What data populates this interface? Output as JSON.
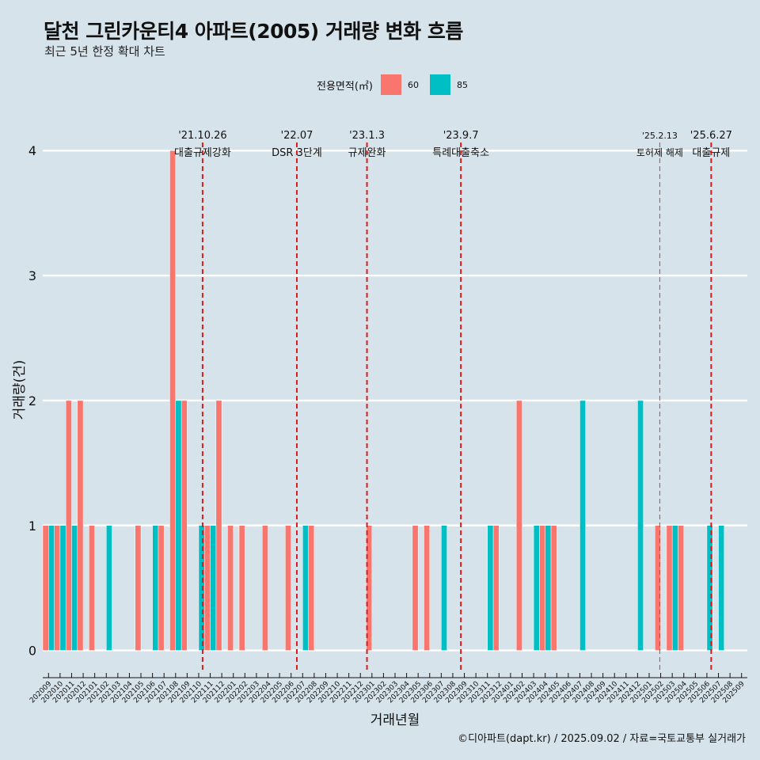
{
  "title": "달천 그린카운티4 아파트(2005) 거래량 변화 흐름",
  "subtitle": "최근 5년 한정 확대 차트",
  "legend": {
    "title": "전용면적(㎡)",
    "items": [
      {
        "label": "60",
        "color": "#f8766d"
      },
      {
        "label": "85",
        "color": "#00bfc4"
      }
    ]
  },
  "caption": "©디아파트(dapt.kr) / 2025.09.02 / 자료=국토교통부 실거래가",
  "chart_data": {
    "type": "bar",
    "xlabel": "거래년월",
    "ylabel": "거래량(건)",
    "ylim": [
      -0.18,
      4.35
    ],
    "yticks": [
      0,
      1,
      2,
      3,
      4
    ],
    "grid": true,
    "legend_position": "top",
    "categories": [
      "202009",
      "202010",
      "202011",
      "202012",
      "202101",
      "202102",
      "202103",
      "202104",
      "202105",
      "202106",
      "202107",
      "202108",
      "202109",
      "202110",
      "202111",
      "202112",
      "202201",
      "202202",
      "202203",
      "202204",
      "202205",
      "202206",
      "202207",
      "202208",
      "202209",
      "202210",
      "202211",
      "202212",
      "202301",
      "202302",
      "202303",
      "202304",
      "202305",
      "202306",
      "202307",
      "202308",
      "202309",
      "202310",
      "202311",
      "202312",
      "202401",
      "202402",
      "202403",
      "202404",
      "202405",
      "202406",
      "202407",
      "202408",
      "202409",
      "202410",
      "202411",
      "202412",
      "202501",
      "202502",
      "202503",
      "202504",
      "202505",
      "202506",
      "202507",
      "202508",
      "202509"
    ],
    "series": [
      {
        "name": "60",
        "color": "#f8766d",
        "values": [
          1,
          1,
          2,
          2,
          1,
          0,
          0,
          0,
          1,
          0,
          1,
          4,
          2,
          0,
          1,
          2,
          1,
          1,
          0,
          1,
          0,
          1,
          0,
          1,
          0,
          0,
          0,
          0,
          1,
          0,
          0,
          0,
          1,
          1,
          0,
          0,
          0,
          0,
          0,
          1,
          0,
          2,
          0,
          1,
          1,
          0,
          0,
          0,
          0,
          0,
          0,
          0,
          0,
          1,
          1,
          1,
          0,
          0,
          0,
          0,
          0
        ]
      },
      {
        "name": "85",
        "color": "#00bfc4",
        "values": [
          1,
          1,
          1,
          0,
          0,
          1,
          0,
          0,
          0,
          1,
          0,
          2,
          0,
          1,
          1,
          0,
          0,
          0,
          0,
          0,
          0,
          0,
          1,
          0,
          0,
          0,
          0,
          0,
          0,
          0,
          0,
          0,
          0,
          0,
          1,
          0,
          0,
          0,
          1,
          0,
          0,
          0,
          1,
          1,
          0,
          0,
          2,
          0,
          0,
          0,
          0,
          2,
          0,
          0,
          1,
          0,
          0,
          1,
          1,
          0,
          0
        ]
      }
    ],
    "annotations": [
      {
        "date": "'21.10.26",
        "label": "대출규제강화",
        "month": "202110",
        "offset": 0.84,
        "style": "bold"
      },
      {
        "date": "'22.07",
        "label": "DSR 3단계",
        "month": "202207",
        "offset": 0.0,
        "style": "bold"
      },
      {
        "date": "'23.1.3",
        "label": "규제완화",
        "month": "202301",
        "offset": 0.07,
        "style": "bold"
      },
      {
        "date": "'23.9.7",
        "label": "특례대출축소",
        "month": "202309",
        "offset": 0.2,
        "style": "bold"
      },
      {
        "date": "'25.2.13",
        "label": "토허제 해제",
        "month": "202502",
        "offset": 0.42,
        "style": "thin"
      },
      {
        "date": "'25.6.27",
        "label": "대출규제",
        "month": "202506",
        "offset": 0.87,
        "style": "bold"
      }
    ]
  }
}
